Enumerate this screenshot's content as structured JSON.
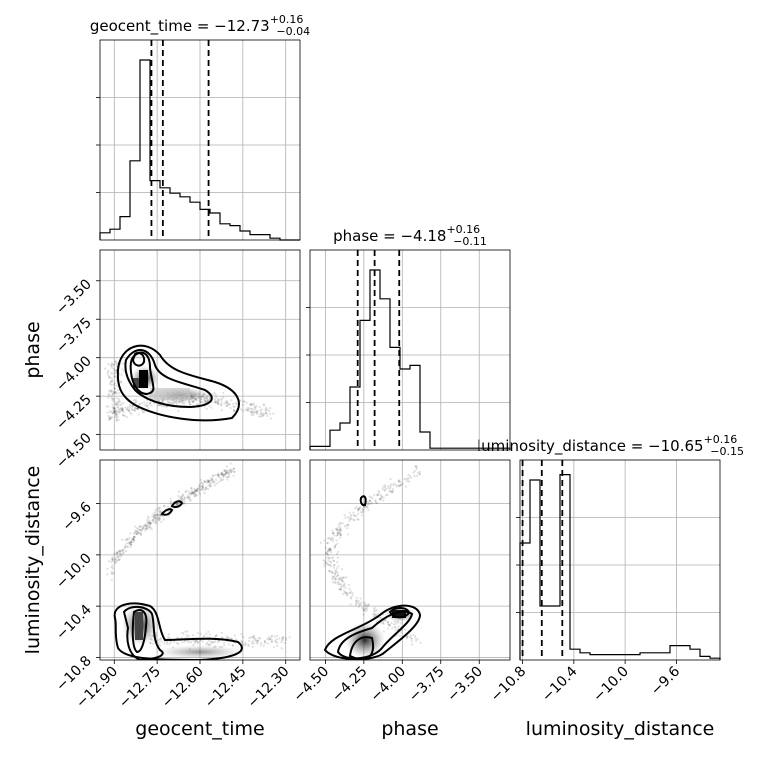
{
  "chart_data": {
    "type": "scatter",
    "parameters": [
      "geocent_time",
      "phase",
      "luminosity_distance"
    ],
    "titles": [
      {
        "param": "geocent_time",
        "prefix": "geocent_time = ",
        "median": "−12.73",
        "plus": "+0.16",
        "minus": "−0.04"
      },
      {
        "param": "phase",
        "prefix": "phase = ",
        "median": "−4.18",
        "plus": "+0.16",
        "minus": "−0.11"
      },
      {
        "param": "luminosity_distance",
        "prefix": "luminosity_distance = ",
        "median": "−10.65",
        "plus": "+0.16",
        "minus": "−0.15"
      }
    ],
    "axes": {
      "geocent_time": {
        "range": [
          -12.95,
          -12.25
        ],
        "ticks": [
          "−12.90",
          "−12.75",
          "−12.60",
          "−12.45",
          "−12.30"
        ],
        "tick_values": [
          -12.9,
          -12.75,
          -12.6,
          -12.45,
          -12.3
        ]
      },
      "phase": {
        "range": [
          -4.6,
          -3.3
        ],
        "ticks": [
          "−4.50",
          "−4.25",
          "−4.00",
          "−3.75",
          "−3.50"
        ],
        "tick_values": [
          -4.5,
          -4.25,
          -4.0,
          -3.75,
          -3.5
        ]
      },
      "luminosity_distance": {
        "range": [
          -10.82,
          -9.26
        ],
        "ticks": [
          "−10.8",
          "−10.4",
          "−10.0",
          "−9.6"
        ],
        "tick_values": [
          -10.8,
          -10.4,
          -10.0,
          -9.6
        ]
      }
    },
    "quantiles": {
      "geocent_time": [
        -12.77,
        -12.73,
        -12.57
      ],
      "phase": [
        -4.29,
        -4.18,
        -4.02
      ],
      "luminosity_distance": [
        -10.8,
        -10.65,
        -10.49
      ]
    },
    "histograms": {
      "geocent_time": [
        0.04,
        0.06,
        0.13,
        0.44,
        1.0,
        0.33,
        0.29,
        0.26,
        0.24,
        0.21,
        0.17,
        0.15,
        0.09,
        0.08,
        0.05,
        0.03,
        0.03,
        0.01,
        0,
        0
      ],
      "phase": [
        0.02,
        0.02,
        0.11,
        0.15,
        0.35,
        0.72,
        1.0,
        0.84,
        0.57,
        0.45,
        0.47,
        0.1,
        0.01,
        0.01,
        0.01,
        0.01,
        0.01,
        0.01,
        0.01,
        0.01
      ],
      "luminosity_distance": [
        0.65,
        1.0,
        0.3,
        0.3,
        1.03,
        0.06,
        0.04,
        0.03,
        0.03,
        0.03,
        0.03,
        0.03,
        0.04,
        0.04,
        0.04,
        0.08,
        0.08,
        0.06,
        0.02,
        0.01
      ]
    },
    "grid": true,
    "color": "#000000"
  }
}
